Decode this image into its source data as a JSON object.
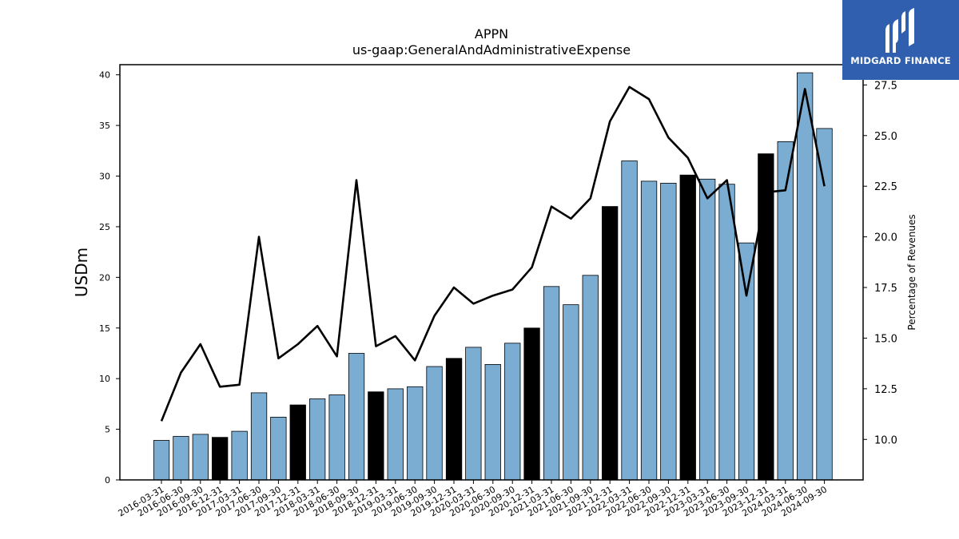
{
  "chart_data": {
    "type": "bar",
    "title": "APPN",
    "subtitle": "us-gaap:GeneralAndAdministrativeExpense",
    "ylabel": "USDm",
    "y2label": "Percentage of Revenues",
    "ylim": [
      0,
      41
    ],
    "y2lim": [
      8.0,
      28.5
    ],
    "yticks": [
      0,
      5,
      10,
      15,
      20,
      25,
      30,
      35,
      40
    ],
    "y2ticks": [
      10.0,
      12.5,
      15.0,
      17.5,
      20.0,
      22.5,
      25.0,
      27.5
    ],
    "categories": [
      "2016-03-31",
      "2016-06-30",
      "2016-09-30",
      "2016-12-31",
      "2017-03-31",
      "2017-06-30",
      "2017-09-30",
      "2017-12-31",
      "2018-03-31",
      "2018-06-30",
      "2018-09-30",
      "2018-12-31",
      "2019-03-31",
      "2019-06-30",
      "2019-09-30",
      "2019-12-31",
      "2020-03-31",
      "2020-06-30",
      "2020-09-30",
      "2020-12-31",
      "2021-03-31",
      "2021-06-30",
      "2021-09-30",
      "2021-12-31",
      "2022-03-31",
      "2022-06-30",
      "2022-09-30",
      "2022-12-31",
      "2023-03-31",
      "2023-06-30",
      "2023-09-30",
      "2023-12-31",
      "2024-03-31",
      "2024-06-30",
      "2024-09-30"
    ],
    "series": [
      {
        "kind": "bar",
        "values": [
          3.9,
          4.3,
          4.5,
          4.2,
          4.8,
          8.6,
          6.2,
          7.4,
          8.0,
          8.4,
          12.5,
          8.7,
          9.0,
          9.2,
          11.2,
          12.0,
          13.1,
          11.4,
          13.5,
          15.0,
          19.1,
          17.3,
          20.2,
          27.0,
          31.5,
          29.5,
          29.3,
          30.1,
          29.7,
          29.2,
          23.4,
          32.2,
          33.4,
          40.2,
          34.7
        ],
        "highlight": [
          false,
          false,
          false,
          true,
          false,
          false,
          false,
          true,
          false,
          false,
          false,
          true,
          false,
          false,
          false,
          true,
          false,
          false,
          false,
          true,
          false,
          false,
          false,
          true,
          false,
          false,
          false,
          true,
          false,
          false,
          false,
          true,
          false,
          false,
          false
        ]
      },
      {
        "kind": "line",
        "axis": "right",
        "values": [
          10.9,
          13.3,
          14.7,
          12.6,
          12.7,
          20.0,
          14.0,
          14.7,
          15.6,
          14.1,
          22.8,
          14.6,
          15.1,
          13.9,
          16.1,
          17.5,
          16.7,
          17.1,
          17.4,
          18.5,
          21.5,
          20.9,
          21.9,
          25.7,
          27.4,
          26.8,
          24.9,
          23.9,
          21.9,
          22.8,
          17.1,
          22.2,
          22.3,
          27.3,
          22.5
        ]
      }
    ],
    "colors": {
      "bar": "#7badd3",
      "bar_highlight": "#000000",
      "line": "#000000"
    },
    "grid": false
  },
  "logo": {
    "text": "MIDGARD FINANCE",
    "color": "#2f5fae"
  }
}
